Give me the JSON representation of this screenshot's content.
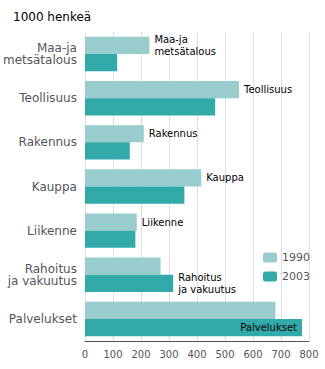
{
  "chart_data": {
    "type": "bar",
    "orientation": "horizontal",
    "title": "1000 henkeä",
    "categories": [
      "Maa-ja\nmetsätalous",
      "Teollisuus",
      "Rakennus",
      "Kauppa",
      "Liikenne",
      "Rahoitus\nja vakuutus",
      "Palvelukset"
    ],
    "series": [
      {
        "name": "1990",
        "color": "#99cccc",
        "values": [
          230,
          550,
          210,
          415,
          185,
          270,
          680
        ]
      },
      {
        "name": "2003",
        "color": "#33aaaa",
        "values": [
          115,
          465,
          160,
          355,
          180,
          315,
          775
        ]
      }
    ],
    "xlim": [
      0,
      800
    ],
    "xticks": [
      0,
      100,
      200,
      300,
      400,
      500,
      600,
      700,
      800
    ],
    "grid": true,
    "legend": "lower right",
    "tick_labels": "x"
  }
}
